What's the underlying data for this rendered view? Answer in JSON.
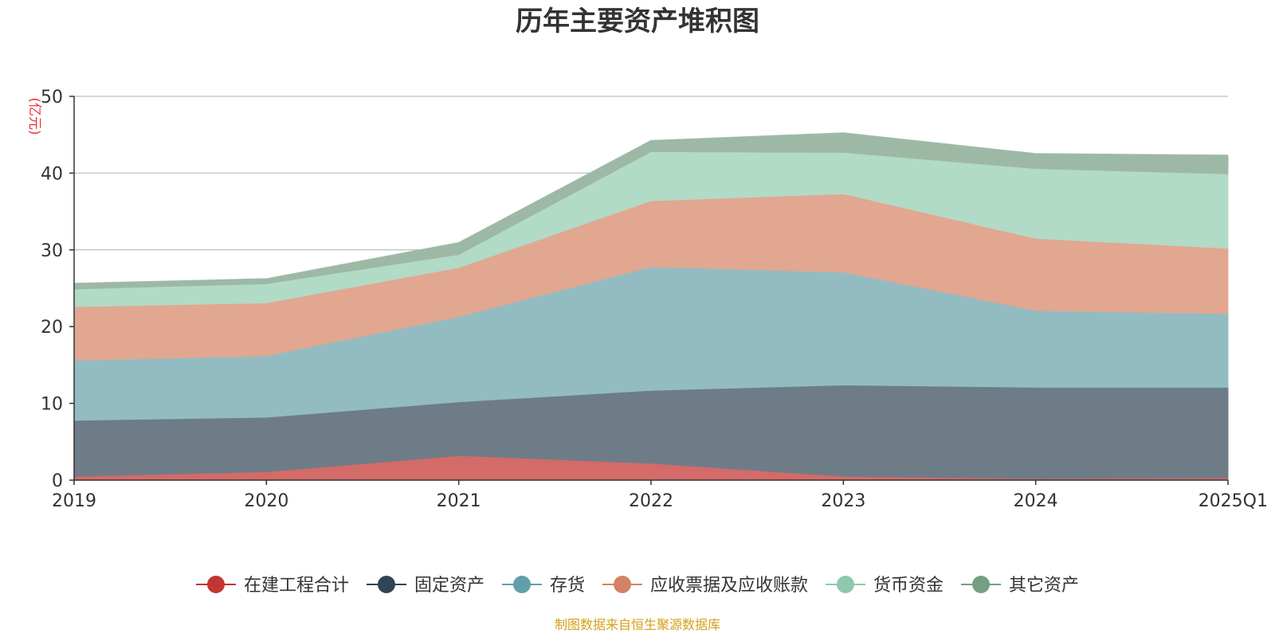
{
  "chart_data": {
    "type": "area",
    "stacked": true,
    "title": "历年主要资产堆积图",
    "unit_label": "(亿元)",
    "categories": [
      "2019",
      "2020",
      "2021",
      "2022",
      "2023",
      "2024",
      "2025Q1"
    ],
    "ylim": [
      0,
      50
    ],
    "yticks": [
      0,
      10,
      20,
      30,
      40,
      50
    ],
    "grid": true,
    "legend_position": "bottom",
    "series": [
      {
        "name": "在建工程合计",
        "color": "#c23531",
        "fill": "#d36b68",
        "values": [
          0.5,
          1.1,
          3.2,
          2.2,
          0.5,
          0.2,
          0.3
        ]
      },
      {
        "name": "固定资产",
        "color": "#2f4554",
        "fill": "#6e7c88",
        "values": [
          7.3,
          7.1,
          7.0,
          9.5,
          11.9,
          11.9,
          11.8
        ]
      },
      {
        "name": "存货",
        "color": "#61a0a8",
        "fill": "#92bcc2",
        "values": [
          7.8,
          8.0,
          11.1,
          16.1,
          14.7,
          10.0,
          9.6
        ]
      },
      {
        "name": "应收票据及应收账款",
        "color": "#d48265",
        "fill": "#e2a790",
        "values": [
          7.0,
          6.9,
          6.4,
          8.6,
          10.2,
          9.4,
          8.5
        ]
      },
      {
        "name": "货币资金",
        "color": "#91c7ae",
        "fill": "#b1dac7",
        "values": [
          2.3,
          2.5,
          1.7,
          6.4,
          5.4,
          9.1,
          9.7
        ]
      },
      {
        "name": "其它资产",
        "color": "#749f83",
        "fill": "#9db9a6",
        "values": [
          0.7,
          0.6,
          1.5,
          1.4,
          2.5,
          1.9,
          2.4
        ]
      }
    ]
  },
  "footer": {
    "source": "制图数据来自恒生聚源数据库"
  }
}
